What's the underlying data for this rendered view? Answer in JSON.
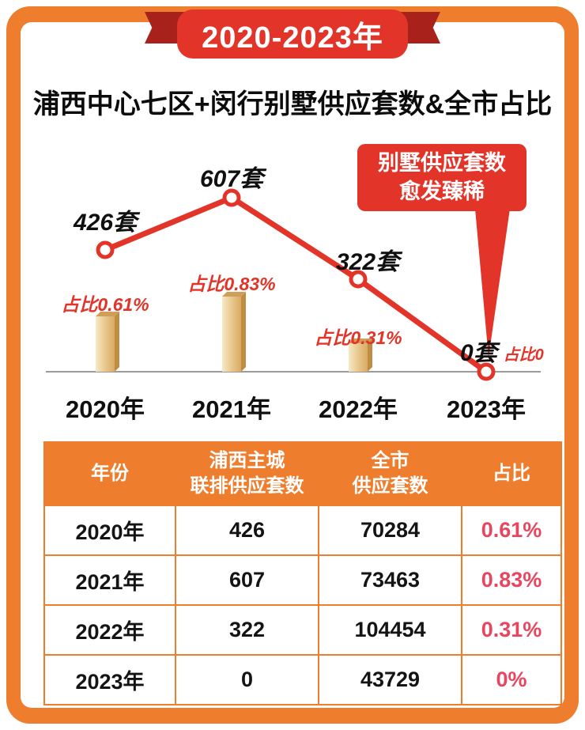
{
  "banner": {
    "title": "2020-2023年"
  },
  "page_title": "浦西中心七区+闵行别墅供应套数&全市占比",
  "callout": {
    "line1": "别墅供应套数",
    "line2": "愈发臻稀"
  },
  "chart_data": {
    "type": "line",
    "title": "浦西中心七区+闵行别墅供应套数&全市占比",
    "categories": [
      "2020年",
      "2021年",
      "2022年",
      "2023年"
    ],
    "series": [
      {
        "name": "别墅供应套数",
        "type": "line",
        "values": [
          426,
          607,
          322,
          0
        ],
        "unit": "套"
      },
      {
        "name": "全市占比",
        "type": "bar",
        "values": [
          0.61,
          0.83,
          0.31,
          0
        ],
        "unit": "%"
      }
    ],
    "point_labels": [
      "426套",
      "607套",
      "322套",
      "0套"
    ],
    "bar_labels": [
      "占比0.61%",
      "占比0.83%",
      "占比0.31%",
      "占比0"
    ],
    "ylim": [
      0,
      700
    ],
    "grid": false,
    "legend": false
  },
  "table": {
    "headers": [
      "年份",
      "浦西主城\n联排供应套数",
      "全市\n供应套数",
      "占比"
    ],
    "rows": [
      [
        "2020年",
        "426",
        "70284",
        "0.61%"
      ],
      [
        "2021年",
        "607",
        "73463",
        "0.83%"
      ],
      [
        "2022年",
        "322",
        "104454",
        "0.31%"
      ],
      [
        "2023年",
        "0",
        "43729",
        "0%"
      ]
    ]
  },
  "colors": {
    "orange": "#ee7d2e",
    "red": "#e23429",
    "dark_red": "#a8211a",
    "rose": "#e8465e",
    "gold": "#e2bb79",
    "baseline_gray": "#9b9b9b"
  }
}
